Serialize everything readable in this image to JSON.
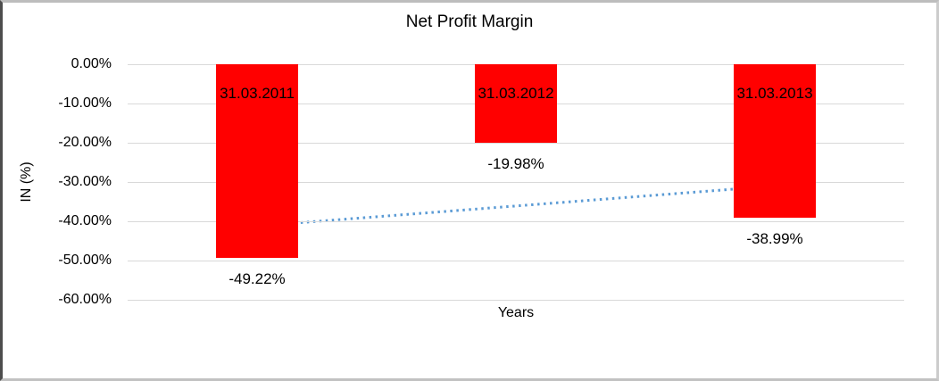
{
  "chart_data": {
    "type": "bar",
    "title": "Net Profit Margin",
    "xlabel": "Years",
    "ylabel": "IN (%)",
    "categories": [
      "31.03.2011",
      "31.03.2012",
      "31.03.2013"
    ],
    "values": [
      -49.22,
      -19.98,
      -38.99
    ],
    "value_labels": [
      "-49.22%",
      "-19.98%",
      "-38.99%"
    ],
    "y_ticks": [
      "0.00%",
      "-10.00%",
      "-20.00%",
      "-30.00%",
      "-40.00%",
      "-50.00%",
      "-60.00%"
    ],
    "y_tick_values": [
      0,
      -10,
      -20,
      -30,
      -40,
      -50,
      -60
    ],
    "ylim": [
      -60,
      0
    ],
    "grid": true,
    "legend": "none",
    "bar_color": "#ff0000",
    "gridline_color": "#d9d9d9",
    "text_color": "#000000",
    "trendline": {
      "style": "dotted",
      "color": "#5b9bd5",
      "start_value": -41.2,
      "end_value": -31.0
    }
  }
}
